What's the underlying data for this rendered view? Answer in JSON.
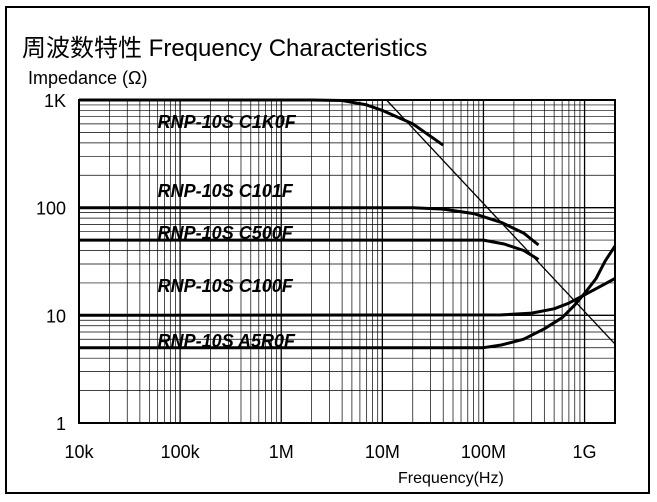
{
  "chart_data": {
    "type": "line",
    "title": "周波数特性   Frequency Characteristics",
    "ylabel": "Impedance (Ω)",
    "xlabel": "Frequency(Hz)",
    "x_scale": "log",
    "y_scale": "log",
    "xlim": [
      10000,
      2000000000
    ],
    "ylim": [
      1,
      1000
    ],
    "grid": true,
    "x_ticks": [
      {
        "value": 10000,
        "label": "10k"
      },
      {
        "value": 100000,
        "label": "100k"
      },
      {
        "value": 1000000,
        "label": "1M"
      },
      {
        "value": 10000000,
        "label": "10M"
      },
      {
        "value": 100000000,
        "label": "100M"
      },
      {
        "value": 1000000000,
        "label": "1G"
      }
    ],
    "y_ticks": [
      {
        "value": 1000,
        "label": "1K"
      },
      {
        "value": 100,
        "label": "100"
      },
      {
        "value": 10,
        "label": "10"
      },
      {
        "value": 1,
        "label": "1"
      }
    ],
    "series": [
      {
        "name": "RNP-10S C1K0F",
        "label_at": [
          60000,
          550
        ],
        "points": [
          [
            10000,
            1000
          ],
          [
            2000000,
            1000
          ],
          [
            4000000,
            990
          ],
          [
            7000000,
            900
          ],
          [
            10000000,
            800
          ],
          [
            20000000,
            600
          ],
          [
            40000000,
            380
          ]
        ]
      },
      {
        "name": "RNP-10S C101F",
        "label_at": [
          60000,
          125
        ],
        "points": [
          [
            10000,
            100
          ],
          [
            20000000,
            100
          ],
          [
            40000000,
            97
          ],
          [
            80000000,
            88
          ],
          [
            150000000,
            73
          ],
          [
            250000000,
            58
          ],
          [
            350000000,
            45
          ]
        ]
      },
      {
        "name": "RNP-10S C500F",
        "label_at": [
          60000,
          51
        ],
        "points": [
          [
            10000,
            50
          ],
          [
            100000000,
            50
          ],
          [
            160000000,
            46
          ],
          [
            250000000,
            40
          ],
          [
            350000000,
            33
          ]
        ]
      },
      {
        "name": "RNP-10S C100F",
        "label_at": [
          60000,
          16.5
        ],
        "points": [
          [
            10000,
            10
          ],
          [
            150000000,
            10.1
          ],
          [
            300000000,
            10.5
          ],
          [
            500000000,
            11.5
          ],
          [
            700000000,
            13
          ],
          [
            1000000000,
            15.5
          ],
          [
            1500000000,
            19
          ],
          [
            2000000000,
            22
          ]
        ]
      },
      {
        "name": "RNP-10S A5R0F",
        "label_at": [
          60000,
          5.1
        ],
        "points": [
          [
            10000,
            5
          ],
          [
            100000000,
            5
          ],
          [
            150000000,
            5.3
          ],
          [
            250000000,
            6
          ],
          [
            400000000,
            7.5
          ],
          [
            600000000,
            9.5
          ],
          [
            800000000,
            12.5
          ],
          [
            1000000000,
            16
          ],
          [
            1300000000,
            22
          ],
          [
            1600000000,
            32
          ],
          [
            2000000000,
            44
          ]
        ]
      }
    ],
    "reference_line": {
      "points": [
        [
          11000000,
          1000
        ],
        [
          2000000000,
          5.4
        ]
      ]
    }
  }
}
